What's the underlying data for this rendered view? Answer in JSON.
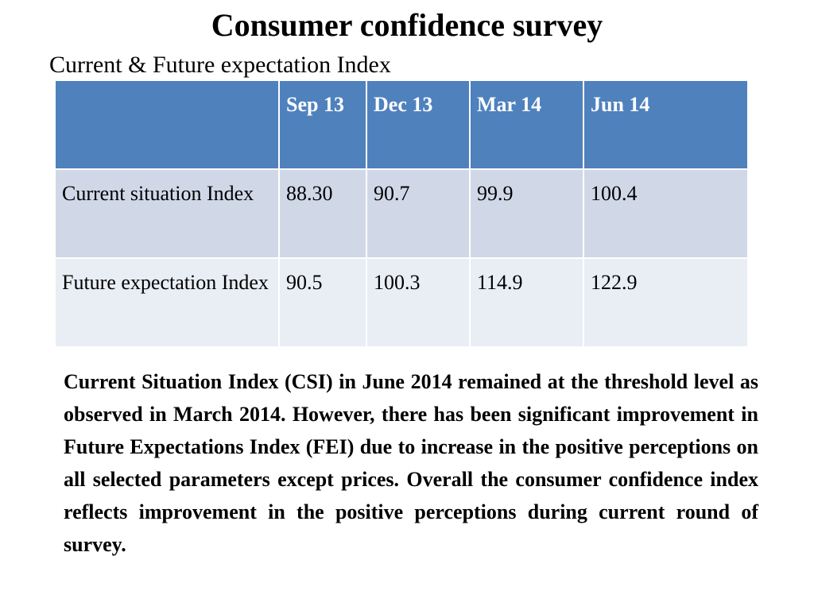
{
  "title": "Consumer confidence survey",
  "subtitle": "Current & Future expectation Index",
  "table": {
    "columns": [
      "",
      "Sep 13",
      "Dec 13",
      "Mar 14",
      "Jun 14"
    ],
    "rows": [
      {
        "label": "Current situation Index",
        "values": [
          "88.30",
          "90.7",
          "99.9",
          "100.4"
        ]
      },
      {
        "label": "Future expectation Index",
        "values": [
          "90.5",
          "100.3",
          "114.9",
          "122.9"
        ]
      }
    ]
  },
  "paragraph": "Current Situation Index (CSI) in June 2014 remained at the threshold level as observed in March 2014. However, there has been significant improvement in Future Expectations Index (FEI) due to increase in the positive perceptions on all selected parameters except prices. Overall the consumer confidence index reflects improvement in the positive perceptions during current round of survey.",
  "colors": {
    "header_fill": "#4f81bd",
    "row_band_1": "#d0d8e8",
    "row_band_2": "#e9edf4"
  }
}
